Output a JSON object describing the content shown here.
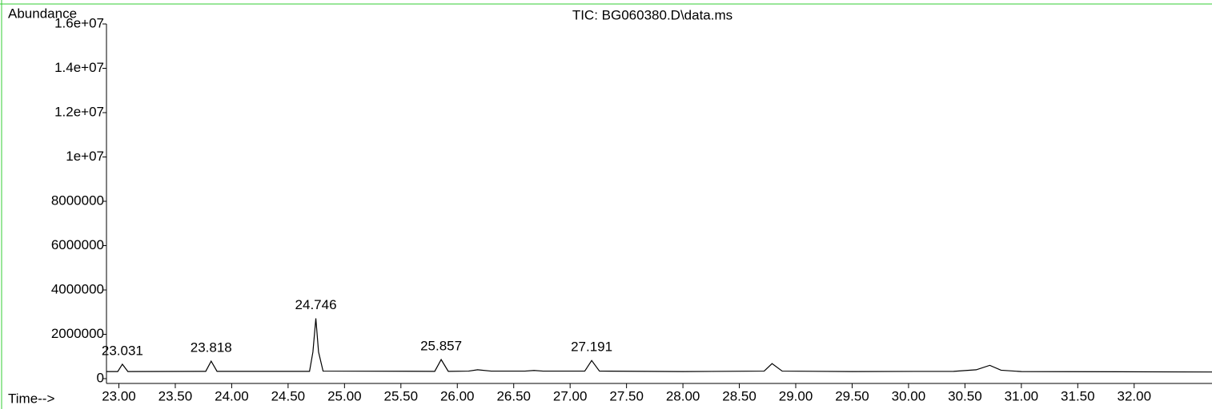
{
  "chart_data": {
    "type": "line",
    "title": "TIC: BG060380.D\\data.ms",
    "y_label": "Abundance",
    "x_label": "Time-->",
    "x": [
      22.89,
      22.99,
      23.031,
      23.08,
      23.77,
      23.818,
      23.87,
      24.69,
      24.72,
      24.746,
      24.77,
      24.81,
      25.8,
      25.857,
      25.92,
      26.1,
      26.18,
      26.3,
      26.6,
      26.68,
      26.76,
      27.13,
      27.191,
      27.26,
      28.0,
      28.72,
      28.79,
      28.88,
      29.5,
      30.4,
      30.6,
      30.72,
      30.82,
      31.0,
      32.69
    ],
    "values": [
      320000,
      320000,
      650000,
      320000,
      330000,
      790000,
      330000,
      330000,
      1200000,
      2720000,
      1200000,
      340000,
      330000,
      860000,
      330000,
      340000,
      400000,
      340000,
      340000,
      370000,
      340000,
      340000,
      820000,
      340000,
      320000,
      340000,
      680000,
      340000,
      320000,
      330000,
      400000,
      600000,
      380000,
      320000,
      300000
    ],
    "color": "#000000",
    "peak_labels": [
      23.031,
      23.818,
      24.746,
      25.857,
      27.191
    ],
    "xlim": [
      22.89,
      32.69
    ],
    "ylim": [
      0,
      16000000
    ],
    "xticks": [
      {
        "value": 23,
        "label": "23.00"
      },
      {
        "value": 23.5,
        "label": "23.50"
      },
      {
        "value": 24,
        "label": "24.00"
      },
      {
        "value": 24.5,
        "label": "24.50"
      },
      {
        "value": 25,
        "label": "25.00"
      },
      {
        "value": 25.5,
        "label": "25.50"
      },
      {
        "value": 26,
        "label": "26.00"
      },
      {
        "value": 26.5,
        "label": "26.50"
      },
      {
        "value": 27,
        "label": "27.00"
      },
      {
        "value": 27.5,
        "label": "27.50"
      },
      {
        "value": 28,
        "label": "28.00"
      },
      {
        "value": 28.5,
        "label": "28.50"
      },
      {
        "value": 29,
        "label": "29.00"
      },
      {
        "value": 29.5,
        "label": "29.50"
      },
      {
        "value": 30,
        "label": "30.00"
      },
      {
        "value": 30.5,
        "label": "30.50"
      },
      {
        "value": 31,
        "label": "31.00"
      },
      {
        "value": 31.5,
        "label": "31.50"
      },
      {
        "value": 32,
        "label": "32.00"
      }
    ],
    "yticks": [
      0,
      2000000,
      4000000,
      6000000,
      8000000,
      {
        "value": 10000000,
        "label": "1e+07"
      },
      {
        "value": 12000000,
        "label": "1.2e+07"
      },
      {
        "value": 14000000,
        "label": "1.4e+07"
      },
      {
        "value": 16000000,
        "label": "1.6e+07"
      }
    ]
  }
}
